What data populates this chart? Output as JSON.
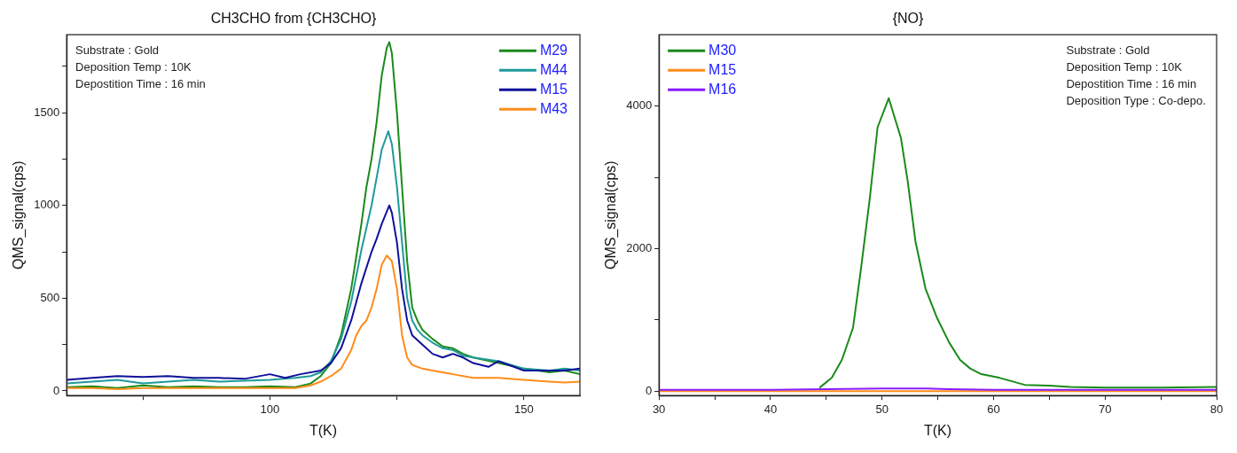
{
  "chart_data": [
    {
      "type": "line",
      "title": "CH3CHO from {CH3CHO}",
      "xlabel": "T(K)",
      "ylabel": "QMS_signal(cps)",
      "xlim": [
        60,
        161
      ],
      "ylim": [
        -25,
        1920
      ],
      "xticks": [
        {
          "value": 75,
          "label": null
        },
        100,
        {
          "value": 125,
          "label": null
        },
        150
      ],
      "yticks": [
        0,
        {
          "value": 250,
          "label": null
        },
        500,
        {
          "value": 750,
          "label": null
        },
        1000,
        {
          "value": 1250,
          "label": null
        },
        1500,
        {
          "value": 1750,
          "label": null
        }
      ],
      "legend": "top right",
      "grid": false,
      "annotations": [
        "Substrate : Gold",
        "Deposition Temp : 10K",
        "Depostition Time : 16 min"
      ],
      "series": [
        {
          "name": "M29",
          "color": "#1a8a1a",
          "x": [
            60,
            65,
            70,
            75,
            80,
            85,
            90,
            95,
            100,
            105,
            108,
            110,
            112,
            114,
            116,
            118,
            119,
            120,
            121,
            122,
            123,
            123.5,
            124,
            125,
            126,
            127,
            128,
            129,
            130,
            132,
            134,
            136,
            138,
            140,
            145,
            150,
            155,
            158,
            161
          ],
          "values": [
            20,
            25,
            15,
            30,
            20,
            25,
            20,
            20,
            25,
            20,
            40,
            80,
            150,
            300,
            550,
            900,
            1100,
            1250,
            1450,
            1700,
            1850,
            1880,
            1820,
            1500,
            1100,
            700,
            450,
            380,
            330,
            280,
            240,
            230,
            200,
            180,
            150,
            120,
            100,
            110,
            90
          ]
        },
        {
          "name": "M44",
          "color": "#1f9a9a",
          "x": [
            60,
            65,
            70,
            75,
            80,
            85,
            90,
            95,
            100,
            105,
            108,
            110,
            112,
            114,
            116,
            118,
            120,
            121,
            122,
            123.3,
            124,
            125,
            126,
            127,
            128,
            129,
            130,
            132,
            134,
            136,
            138,
            140,
            145,
            150,
            155,
            158,
            161
          ],
          "values": [
            40,
            50,
            60,
            40,
            50,
            60,
            50,
            55,
            60,
            70,
            80,
            100,
            160,
            280,
            480,
            760,
            1000,
            1150,
            1300,
            1400,
            1330,
            1100,
            800,
            500,
            380,
            330,
            300,
            260,
            230,
            220,
            190,
            180,
            160,
            120,
            110,
            120,
            110
          ]
        },
        {
          "name": "M15",
          "color": "#10109a",
          "x": [
            60,
            65,
            70,
            75,
            80,
            85,
            90,
            95,
            100,
            103,
            106,
            110,
            112,
            114,
            116,
            118,
            120,
            121,
            122,
            123.5,
            124,
            125,
            126,
            127,
            128,
            130,
            132,
            134,
            136,
            138,
            140,
            143,
            145,
            148,
            150,
            155,
            158,
            161
          ],
          "values": [
            60,
            70,
            80,
            75,
            80,
            70,
            70,
            65,
            90,
            70,
            90,
            110,
            150,
            230,
            380,
            580,
            750,
            820,
            900,
            1000,
            960,
            800,
            550,
            380,
            300,
            250,
            200,
            180,
            200,
            180,
            150,
            130,
            160,
            130,
            110,
            110,
            110,
            120
          ]
        },
        {
          "name": "M43",
          "color": "#ff8c1a",
          "x": [
            60,
            65,
            70,
            75,
            80,
            85,
            90,
            95,
            100,
            105,
            108,
            110,
            112,
            114,
            116,
            117,
            118,
            119,
            120,
            121,
            122,
            123,
            124,
            125,
            126,
            127,
            128,
            130,
            132,
            134,
            136,
            140,
            145,
            150,
            155,
            158,
            161
          ],
          "values": [
            15,
            15,
            10,
            15,
            15,
            15,
            15,
            15,
            15,
            15,
            30,
            50,
            80,
            120,
            220,
            300,
            350,
            380,
            450,
            550,
            680,
            730,
            700,
            550,
            300,
            180,
            140,
            120,
            110,
            100,
            90,
            70,
            70,
            60,
            50,
            45,
            50
          ]
        }
      ]
    },
    {
      "type": "line",
      "title": "{NO}",
      "xlabel": "T(K)",
      "ylabel": "QMS_signal(cps)",
      "xlim": [
        30,
        80
      ],
      "ylim": [
        -60,
        5000
      ],
      "xticks": [
        30,
        {
          "value": 35,
          "label": null
        },
        40,
        {
          "value": 45,
          "label": null
        },
        50,
        {
          "value": 55,
          "label": null
        },
        60,
        {
          "value": 65,
          "label": null
        },
        70,
        {
          "value": 75,
          "label": null
        },
        80
      ],
      "yticks": [
        0,
        {
          "value": 1000,
          "label": null
        },
        2000,
        {
          "value": 3000,
          "label": null
        },
        4000
      ],
      "legend": "top left",
      "grid": false,
      "annotations": [
        "Substrate : Gold",
        "Deposition Temp : 10K",
        "Depostition Time : 16 min",
        "Deposition Type : Co-depo."
      ],
      "series": [
        {
          "name": "M30",
          "color": "#1a8a1a",
          "x": [
            44.4,
            45.5,
            46.4,
            47.4,
            48.1,
            48.9,
            49.6,
            50.6,
            51.7,
            52.3,
            53,
            53.9,
            54.9,
            56,
            57,
            57.9,
            58.9,
            60.5,
            62.8,
            65,
            66.9,
            70,
            75,
            80
          ],
          "values": [
            50,
            190,
            440,
            890,
            1700,
            2700,
            3700,
            4110,
            3550,
            2950,
            2100,
            1440,
            1040,
            690,
            440,
            320,
            240,
            190,
            90,
            80,
            60,
            50,
            50,
            60
          ]
        },
        {
          "name": "M15",
          "color": "#ff8c1a",
          "x": [
            30,
            40,
            50,
            60,
            70,
            80
          ],
          "values": [
            0,
            0,
            0,
            0,
            0,
            0
          ]
        },
        {
          "name": "M16",
          "color": "#8a1aff",
          "x": [
            30,
            40,
            45,
            50,
            52,
            54,
            56,
            60,
            70,
            80
          ],
          "values": [
            20,
            20,
            30,
            40,
            40,
            40,
            30,
            20,
            20,
            20
          ]
        }
      ]
    }
  ]
}
